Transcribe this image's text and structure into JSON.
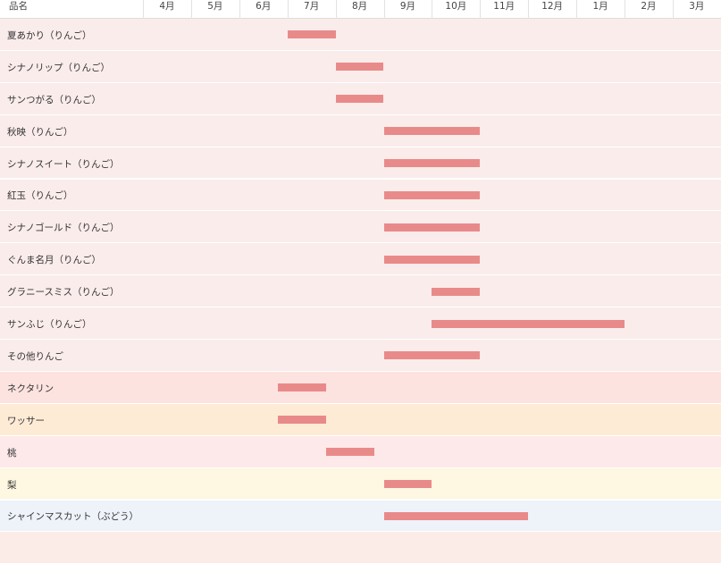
{
  "header": {
    "name_label": "品名",
    "months": [
      "4月",
      "5月",
      "6月",
      "7月",
      "8月",
      "9月",
      "10月",
      "11月",
      "12月",
      "1月",
      "2月",
      "3月"
    ]
  },
  "colors": {
    "bar": "#e98a8a",
    "row_apple": "#faeceb",
    "row_nectarine": "#fde3df",
    "row_wasser": "#feebd6",
    "row_peach": "#fde8ea",
    "row_pear": "#fef7e1",
    "row_grape": "#eef2f9",
    "row_next": "#fbece8"
  },
  "chart_data": {
    "type": "gantt",
    "x_unit": "month (fractional, 4月 = 4.0 at column start)",
    "columns": [
      "4月",
      "5月",
      "6月",
      "7月",
      "8月",
      "9月",
      "10月",
      "11月",
      "12月",
      "1月",
      "2月",
      "3月"
    ],
    "rows": [
      {
        "name": "夏あかり（りんご）",
        "start": 7.0,
        "end": 8.0,
        "row_color": "row_apple"
      },
      {
        "name": "シナノリップ（りんご）",
        "start": 8.0,
        "end": 9.0,
        "row_color": "row_apple"
      },
      {
        "name": "サンつがる（りんご）",
        "start": 8.0,
        "end": 9.0,
        "row_color": "row_apple"
      },
      {
        "name": "秋映（りんご）",
        "start": 9.0,
        "end": 11.0,
        "row_color": "row_apple"
      },
      {
        "name": "シナノスイート（りんご）",
        "start": 9.0,
        "end": 11.0,
        "row_color": "row_apple"
      },
      {
        "name": "紅玉（りんご）",
        "start": 9.0,
        "end": 11.0,
        "row_color": "row_apple"
      },
      {
        "name": "シナノゴールド（りんご）",
        "start": 9.0,
        "end": 11.0,
        "row_color": "row_apple"
      },
      {
        "name": "ぐんま名月（りんご）",
        "start": 9.0,
        "end": 11.0,
        "row_color": "row_apple"
      },
      {
        "name": "グラニースミス（りんご）",
        "start": 10.0,
        "end": 11.0,
        "row_color": "row_apple"
      },
      {
        "name": "サンふじ（りんご）",
        "start": 10.0,
        "end": 14.0,
        "row_color": "row_apple"
      },
      {
        "name": "その他りんご",
        "start": 9.0,
        "end": 11.0,
        "row_color": "row_apple"
      },
      {
        "name": "ネクタリン",
        "start": 6.8,
        "end": 7.8,
        "row_color": "row_nectarine"
      },
      {
        "name": "ワッサー",
        "start": 6.8,
        "end": 7.8,
        "row_color": "row_wasser"
      },
      {
        "name": "桃",
        "start": 7.8,
        "end": 8.8,
        "row_color": "row_peach"
      },
      {
        "name": "梨",
        "start": 9.0,
        "end": 10.0,
        "row_color": "row_pear"
      },
      {
        "name": "シャインマスカット（ぶどう）",
        "start": 9.0,
        "end": 12.0,
        "row_color": "row_grape"
      },
      {
        "name": "",
        "start": null,
        "end": null,
        "row_color": "row_next"
      }
    ]
  }
}
